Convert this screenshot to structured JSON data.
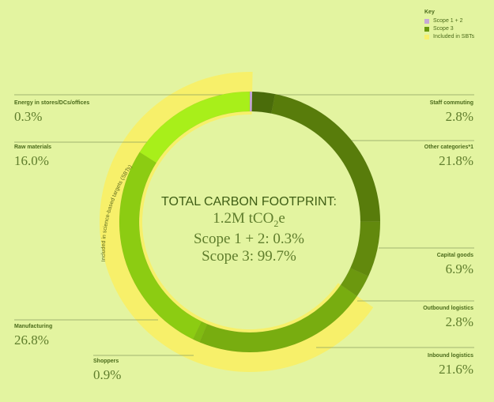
{
  "key": {
    "title": "Key",
    "items": [
      {
        "label": "Scope 1 + 2",
        "color": "#c7a8d6"
      },
      {
        "label": "Scope 3",
        "color": "#6a9a0e"
      },
      {
        "label": "Included in SBTs",
        "color": "#f7f06a"
      }
    ]
  },
  "center": {
    "heading": "TOTAL CARBON FOOTPRINT:",
    "total_prefix": "1.2M tCO",
    "total_sub": "2",
    "total_suffix": "e",
    "scope12": "Scope 1 + 2: 0.3%",
    "scope3": "Scope 3: 99.7%"
  },
  "arc_label": "Included in science-based targets (SBTs)",
  "chart_data": {
    "type": "pie",
    "total": "1.2M tCO2e",
    "segments": [
      {
        "name": "Energy in stores/DCs/offices",
        "pct_label": "0.3%",
        "value": 0.3,
        "color": "#c7a8d6",
        "sbt": true
      },
      {
        "name": "Staff commuting",
        "pct_label": "2.8%",
        "value": 2.8,
        "color": "#4a6c0a",
        "sbt": false
      },
      {
        "name": "Other categories*1",
        "pct_label": "21.8%",
        "value": 21.8,
        "color": "#587c0b",
        "sbt": false
      },
      {
        "name": "Capital goods",
        "pct_label": "6.9%",
        "value": 6.9,
        "color": "#62890d",
        "sbt": false
      },
      {
        "name": "Outbound logistics",
        "pct_label": "2.8%",
        "value": 2.8,
        "color": "#6c980f",
        "sbt": false
      },
      {
        "name": "Inbound logistics",
        "pct_label": "21.6%",
        "value": 21.6,
        "color": "#78ad10",
        "sbt": true
      },
      {
        "name": "Shoppers",
        "pct_label": "0.9%",
        "value": 0.9,
        "color": "#80bb12",
        "sbt": true
      },
      {
        "name": "Manufacturing",
        "pct_label": "26.8%",
        "value": 26.8,
        "color": "#8ccc12",
        "sbt": true
      },
      {
        "name": "Raw materials",
        "pct_label": "16.0%",
        "value": 16.0,
        "color": "#a8ef1a",
        "sbt": true
      }
    ]
  }
}
